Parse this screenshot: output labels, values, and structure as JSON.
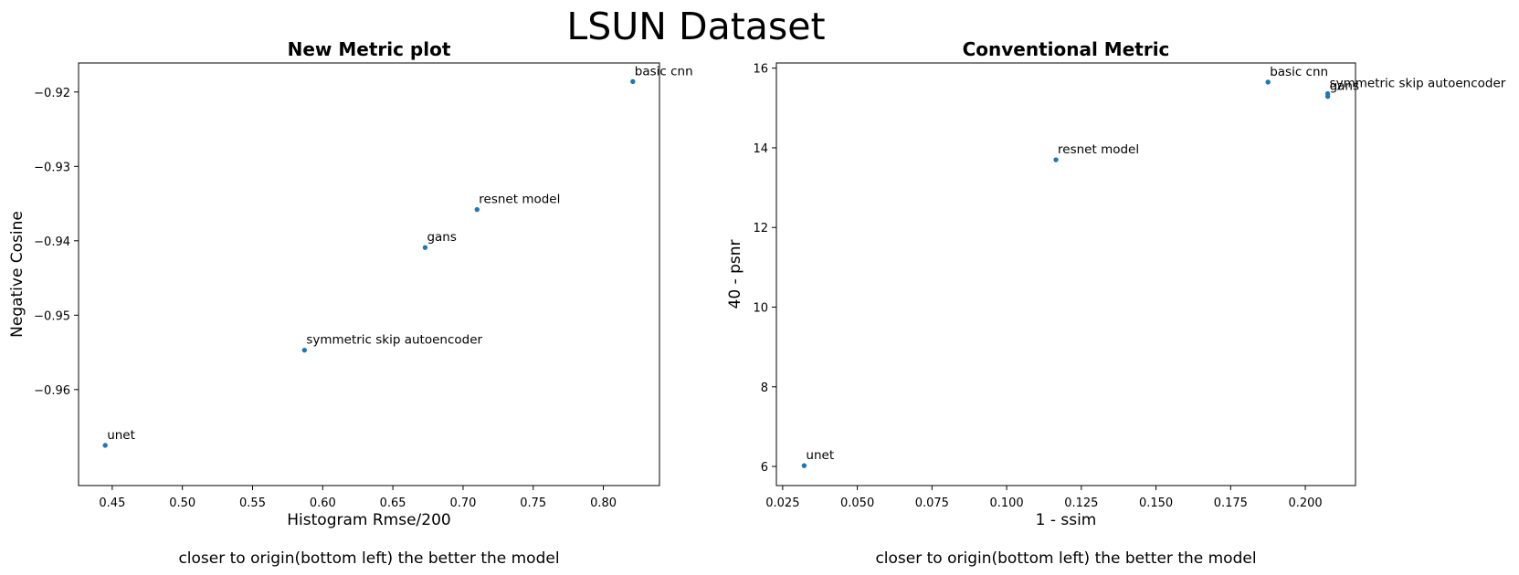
{
  "figure": {
    "title": "LSUN Dataset",
    "marker_color": "#1f77b4"
  },
  "chart_data": [
    {
      "type": "scatter",
      "title": "New Metric plot",
      "xlabel": "Histogram Rmse/200",
      "ylabel": "Negative Cosine",
      "note": "closer to origin(bottom left) the better the model",
      "xlim": [
        0.426,
        0.84
      ],
      "ylim": [
        -0.9729,
        -0.9161
      ],
      "xticks": [
        0.45,
        0.5,
        0.55,
        0.6,
        0.65,
        0.7,
        0.75,
        0.8
      ],
      "xtick_labels": [
        "0.45",
        "0.50",
        "0.55",
        "0.60",
        "0.65",
        "0.70",
        "0.75",
        "0.80"
      ],
      "yticks": [
        -0.92,
        -0.93,
        -0.94,
        -0.95,
        -0.96
      ],
      "ytick_labels": [
        "−0.92",
        "−0.93",
        "−0.94",
        "−0.95",
        "−0.96"
      ],
      "points": [
        {
          "label": "basic cnn",
          "x": 0.821,
          "y": -0.9186
        },
        {
          "label": "resnet model",
          "x": 0.71,
          "y": -0.9358
        },
        {
          "label": "gans",
          "x": 0.673,
          "y": -0.9409
        },
        {
          "label": "symmetric skip autoencoder",
          "x": 0.587,
          "y": -0.9547
        },
        {
          "label": "unet",
          "x": 0.445,
          "y": -0.9675
        }
      ]
    },
    {
      "type": "scatter",
      "title": "Conventional Metric",
      "xlabel": "1 - ssim",
      "ylabel": "40 - psnr",
      "note": "closer to origin(bottom left) the better the model",
      "xlim": [
        0.0229,
        0.2168
      ],
      "ylim": [
        5.52,
        16.13
      ],
      "xticks": [
        0.025,
        0.05,
        0.075,
        0.1,
        0.125,
        0.15,
        0.175,
        0.2
      ],
      "xtick_labels": [
        "0.025",
        "0.050",
        "0.075",
        "0.100",
        "0.125",
        "0.150",
        "0.175",
        "0.200"
      ],
      "yticks": [
        6,
        8,
        10,
        12,
        14,
        16
      ],
      "ytick_labels": [
        "6",
        "8",
        "10",
        "12",
        "14",
        "16"
      ],
      "points": [
        {
          "label": "basic cnn",
          "x": 0.1875,
          "y": 15.65
        },
        {
          "label": "symmetric skip autoencoder",
          "x": 0.2075,
          "y": 15.36
        },
        {
          "label": "gans",
          "x": 0.2075,
          "y": 15.29
        },
        {
          "label": "resnet model",
          "x": 0.1165,
          "y": 13.7
        },
        {
          "label": "unet",
          "x": 0.0322,
          "y": 6.02
        }
      ]
    }
  ]
}
